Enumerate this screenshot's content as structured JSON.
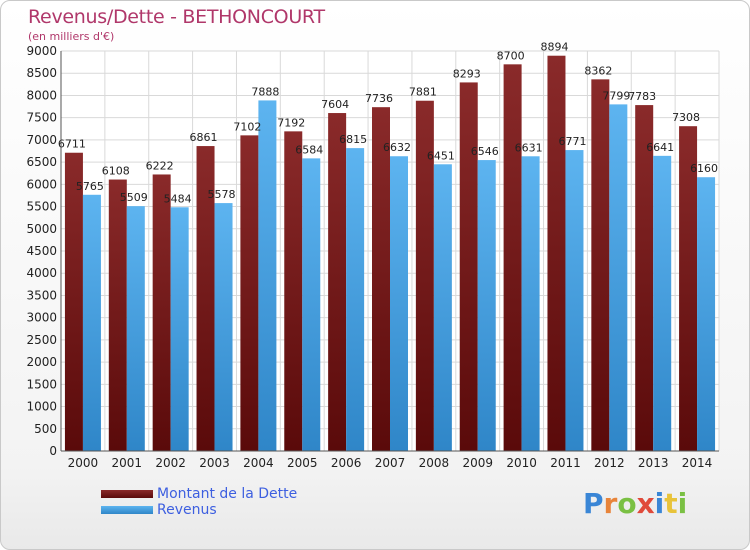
{
  "chart_data": {
    "type": "bar",
    "title": "Revenus/Dette - BETHONCOURT",
    "subtitle": "(en milliers d'€)",
    "categories": [
      "2000",
      "2001",
      "2002",
      "2003",
      "2004",
      "2005",
      "2006",
      "2007",
      "2008",
      "2009",
      "2010",
      "2011",
      "2012",
      "2013",
      "2014"
    ],
    "series": [
      {
        "name": "Montant de la Dette",
        "values": [
          6711,
          6108,
          6222,
          6861,
          7102,
          7192,
          7604,
          7736,
          7881,
          8293,
          8700,
          8894,
          8362,
          7783,
          7308
        ],
        "color": "#7a1a1a"
      },
      {
        "name": "Revenus",
        "values": [
          5765,
          5509,
          5484,
          5578,
          7888,
          6584,
          6815,
          6632,
          6451,
          6546,
          6631,
          6771,
          7799,
          6641,
          6160
        ],
        "color": "#4aa3e6"
      }
    ],
    "ylim": [
      0,
      9000
    ],
    "ytick_step": 500,
    "grid": true,
    "legend_position": "bottom-left"
  },
  "brand": {
    "letters": [
      "P",
      "r",
      "o",
      "x",
      "i",
      "t",
      "i"
    ],
    "colors": [
      "#3a86d6",
      "#e8843a",
      "#7ac043",
      "#e04a3a",
      "#3a86d6",
      "#e8c33a",
      "#7ac043"
    ]
  }
}
